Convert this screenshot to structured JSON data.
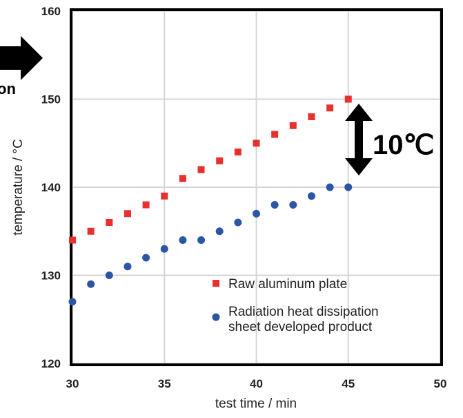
{
  "chart_data": {
    "type": "scatter",
    "xlabel": "test time / min",
    "ylabel": "temperature / °C",
    "xlim": [
      30,
      50
    ],
    "ylim": [
      120,
      160
    ],
    "xticks": [
      "30",
      "35",
      "40",
      "45",
      "50"
    ],
    "yticks": [
      "120",
      "130",
      "140",
      "150",
      "160"
    ],
    "grid": true,
    "legend_position": "bottom-right",
    "series": [
      {
        "name": "Raw aluminum plate",
        "marker": "square",
        "color": "#e8302e",
        "x": [
          30,
          31,
          32,
          33,
          34,
          35,
          36,
          37,
          38,
          39,
          40,
          41,
          42,
          43,
          44,
          45
        ],
        "y": [
          134,
          135,
          136,
          137,
          138,
          139,
          141,
          142,
          143,
          144,
          145,
          146,
          147,
          148,
          149,
          150
        ]
      },
      {
        "name_lines": [
          "Radiation heat dissipation",
          "sheet developed product"
        ],
        "marker": "circle",
        "color": "#2a56a5",
        "x": [
          30,
          31,
          32,
          33,
          34,
          35,
          36,
          37,
          38,
          39,
          40,
          41,
          42,
          43,
          44,
          45
        ],
        "y": [
          127,
          129,
          130,
          131,
          132,
          133,
          134,
          134,
          135,
          136,
          137,
          138,
          138,
          139,
          140,
          140
        ]
      }
    ],
    "annotations": {
      "difference_label": "10℃",
      "cut_off_text": "on"
    }
  }
}
